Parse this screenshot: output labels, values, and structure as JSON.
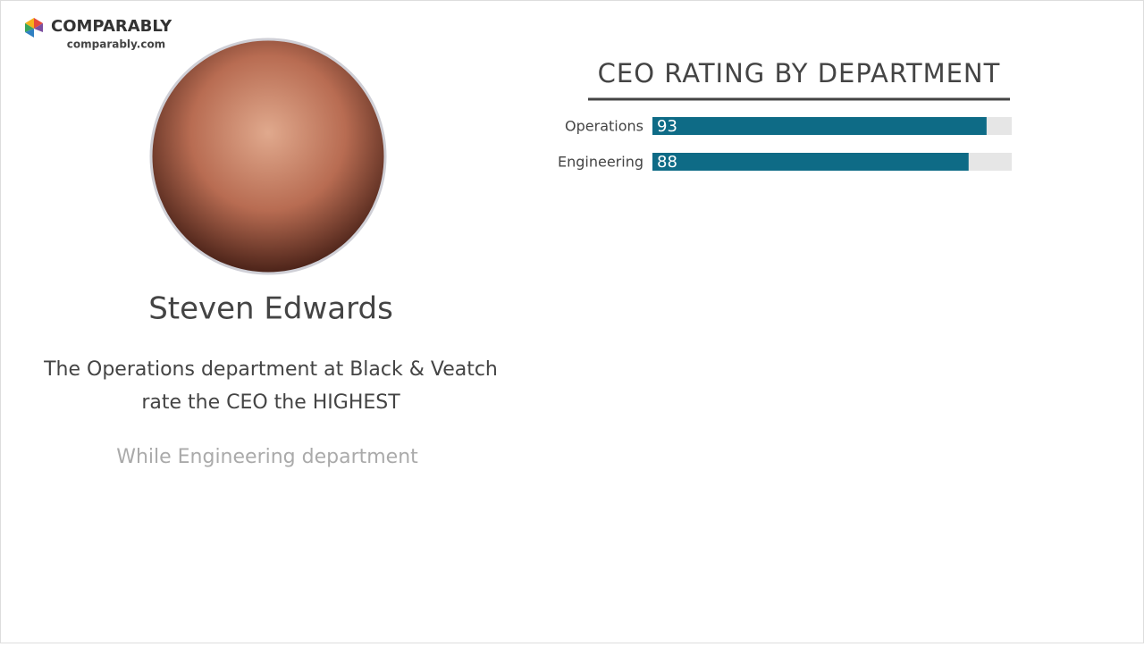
{
  "logo": {
    "name": "COMPARABLY",
    "url": "comparably.com"
  },
  "profile": {
    "name": "Steven Edwards",
    "lines": [
      "The Operations department at Black & Veatch",
      "rate the CEO the HIGHEST"
    ],
    "subtext": "While Engineering department"
  },
  "chart_data": {
    "type": "bar",
    "orientation": "horizontal",
    "title": "CEO RATING BY DEPARTMENT",
    "categories": [
      "Operations",
      "Engineering"
    ],
    "values": [
      93,
      88
    ],
    "color": "#0e6b86",
    "track_color": "#e6e6e6",
    "xlim": [
      0,
      100
    ]
  }
}
